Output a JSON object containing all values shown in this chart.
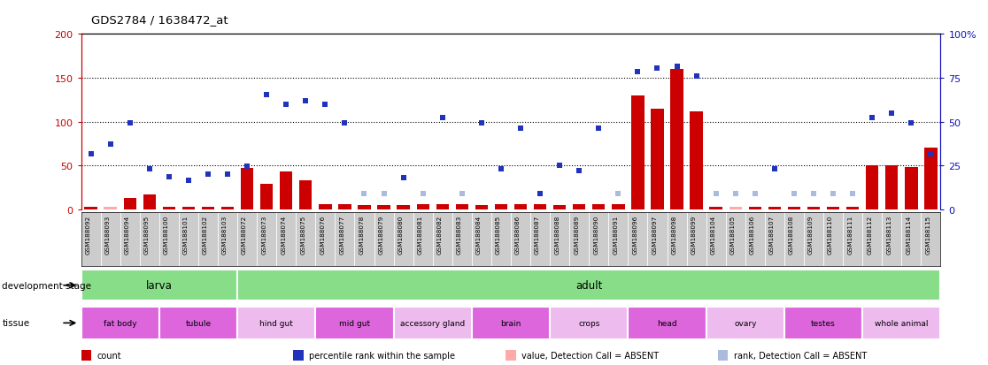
{
  "title": "GDS2784 / 1638472_at",
  "samples": [
    "GSM188092",
    "GSM188093",
    "GSM188094",
    "GSM188095",
    "GSM188100",
    "GSM188101",
    "GSM188102",
    "GSM188103",
    "GSM188072",
    "GSM188073",
    "GSM188074",
    "GSM188075",
    "GSM188076",
    "GSM188077",
    "GSM188078",
    "GSM188079",
    "GSM188080",
    "GSM188081",
    "GSM188082",
    "GSM188083",
    "GSM188084",
    "GSM188085",
    "GSM188086",
    "GSM188087",
    "GSM188088",
    "GSM188089",
    "GSM188090",
    "GSM188091",
    "GSM188096",
    "GSM188097",
    "GSM188098",
    "GSM188099",
    "GSM188104",
    "GSM188105",
    "GSM188106",
    "GSM188107",
    "GSM188108",
    "GSM188109",
    "GSM188110",
    "GSM188111",
    "GSM188112",
    "GSM188113",
    "GSM188114",
    "GSM188115"
  ],
  "counts": [
    3,
    3,
    13,
    17,
    3,
    3,
    3,
    3,
    47,
    29,
    43,
    33,
    6,
    6,
    5,
    5,
    5,
    6,
    6,
    6,
    5,
    6,
    6,
    6,
    5,
    6,
    6,
    6,
    130,
    115,
    160,
    112,
    3,
    3,
    3,
    3,
    3,
    3,
    3,
    3,
    50,
    50,
    48,
    70
  ],
  "counts_absent": [
    false,
    false,
    false,
    false,
    false,
    false,
    false,
    false,
    false,
    false,
    false,
    false,
    false,
    false,
    false,
    false,
    false,
    false,
    false,
    false,
    false,
    false,
    false,
    false,
    false,
    false,
    false,
    false,
    false,
    false,
    false,
    false,
    false,
    false,
    false,
    false,
    false,
    false,
    false,
    false,
    false,
    false,
    false,
    false
  ],
  "counts_show_absent_bar": [
    false,
    true,
    false,
    false,
    false,
    false,
    false,
    false,
    false,
    false,
    false,
    false,
    false,
    false,
    false,
    false,
    false,
    false,
    false,
    false,
    false,
    false,
    false,
    false,
    false,
    false,
    false,
    false,
    false,
    false,
    false,
    false,
    false,
    true,
    false,
    false,
    false,
    false,
    false,
    false,
    false,
    false,
    false,
    false
  ],
  "ranks": [
    63,
    75,
    99,
    46,
    37,
    33,
    40,
    40,
    49,
    131,
    120,
    124,
    120,
    99,
    18,
    18,
    36,
    18,
    105,
    18,
    99,
    46,
    93,
    18,
    50,
    44,
    93,
    18,
    157,
    161,
    163,
    152,
    18,
    18,
    18,
    46,
    18,
    18,
    18,
    18,
    105,
    110,
    99,
    63
  ],
  "ranks_absent": [
    false,
    false,
    false,
    false,
    false,
    false,
    false,
    false,
    false,
    false,
    false,
    false,
    false,
    false,
    true,
    true,
    false,
    true,
    false,
    true,
    false,
    false,
    false,
    false,
    false,
    false,
    false,
    true,
    false,
    false,
    false,
    false,
    true,
    true,
    true,
    false,
    true,
    true,
    true,
    true,
    false,
    false,
    false,
    false
  ],
  "development_stage_groups": [
    {
      "label": "larva",
      "start": 0,
      "end": 8
    },
    {
      "label": "adult",
      "start": 8,
      "end": 44
    }
  ],
  "tissue_groups": [
    {
      "label": "fat body",
      "start": 0,
      "end": 4,
      "color": "#dd66dd"
    },
    {
      "label": "tubule",
      "start": 4,
      "end": 8,
      "color": "#dd66dd"
    },
    {
      "label": "hind gut",
      "start": 8,
      "end": 12,
      "color": "#eebbee"
    },
    {
      "label": "mid gut",
      "start": 12,
      "end": 16,
      "color": "#dd66dd"
    },
    {
      "label": "accessory gland",
      "start": 16,
      "end": 20,
      "color": "#eebbee"
    },
    {
      "label": "brain",
      "start": 20,
      "end": 24,
      "color": "#dd66dd"
    },
    {
      "label": "crops",
      "start": 24,
      "end": 28,
      "color": "#eebbee"
    },
    {
      "label": "head",
      "start": 28,
      "end": 32,
      "color": "#dd66dd"
    },
    {
      "label": "ovary",
      "start": 32,
      "end": 36,
      "color": "#eebbee"
    },
    {
      "label": "testes",
      "start": 36,
      "end": 40,
      "color": "#dd66dd"
    },
    {
      "label": "whole animal",
      "start": 40,
      "end": 44,
      "color": "#eebbee"
    }
  ],
  "ylim_left": [
    0,
    200
  ],
  "yticks_left": [
    0,
    50,
    100,
    150,
    200
  ],
  "yticks_right": [
    0,
    25,
    50,
    75,
    100
  ],
  "bar_color": "#cc0000",
  "bar_absent_color": "#ffaaaa",
  "rank_color": "#2233bb",
  "rank_absent_color": "#aabbdd",
  "dev_color": "#88dd88",
  "label_bg": "#cccccc",
  "left_axis_color": "#cc0000",
  "right_axis_color": "#1111bb"
}
